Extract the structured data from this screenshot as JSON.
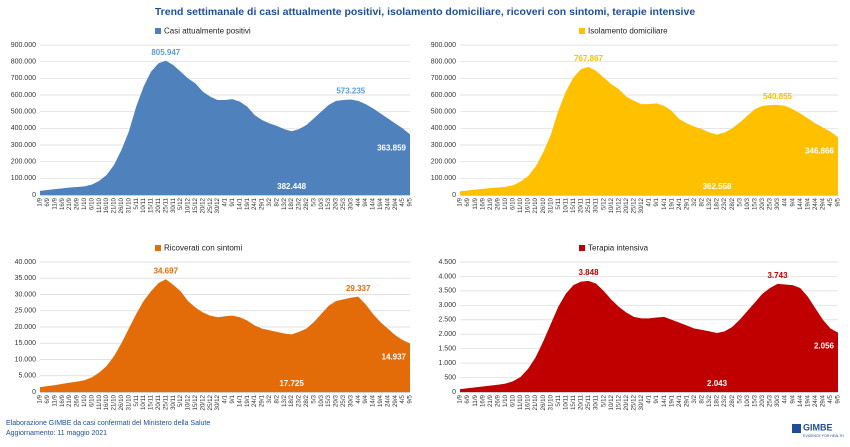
{
  "title": "Trend settimanale di casi attualmente positivi, isolamento domiciliare, ricoveri con sintomi, terapie intensive",
  "footer": [
    "Elaborazione GIMBE da casi confermati del Ministero della Salute",
    "Aggiornamento: 11 maggio 2021"
  ],
  "logo": {
    "name": "GIMBE",
    "tagline": "EVIDENCE FOR HEALTH"
  },
  "chart_data": [
    {
      "type": "area",
      "series": [
        {
          "name": "Casi attualmente positivi",
          "color": "#4f81bd",
          "label_color": "#5b9bd5",
          "values": [
            25000,
            30000,
            35000,
            40000,
            45000,
            48000,
            52000,
            62000,
            85000,
            120000,
            180000,
            270000,
            380000,
            530000,
            650000,
            740000,
            790000,
            805947,
            780000,
            740000,
            700000,
            670000,
            620000,
            590000,
            570000,
            570000,
            575000,
            560000,
            530000,
            480000,
            450000,
            430000,
            415000,
            395000,
            382448,
            395000,
            420000,
            460000,
            500000,
            540000,
            565000,
            570000,
            573235,
            565000,
            545000,
            520000,
            490000,
            460000,
            430000,
            400000,
            363859
          ],
          "value_labels": [
            null,
            null,
            null,
            null,
            null,
            null,
            null,
            null,
            null,
            null,
            null,
            null,
            null,
            null,
            null,
            null,
            null,
            "805.947",
            null,
            null,
            null,
            null,
            null,
            null,
            null,
            null,
            null,
            null,
            null,
            null,
            null,
            null,
            null,
            null,
            "382.448",
            null,
            null,
            null,
            null,
            null,
            null,
            null,
            "573.235",
            null,
            null,
            null,
            null,
            null,
            null,
            null,
            "363.859"
          ]
        }
      ],
      "categories": [
        "1/9",
        "6/9",
        "11/9",
        "16/9",
        "21/9",
        "26/9",
        "1/10",
        "6/10",
        "11/10",
        "16/10",
        "21/10",
        "26/10",
        "31/10",
        "5/11",
        "10/11",
        "15/11",
        "20/11",
        "25/11",
        "30/11",
        "5/12",
        "10/12",
        "15/12",
        "20/12",
        "25/12",
        "30/12",
        "4/1",
        "9/1",
        "14/1",
        "19/1",
        "24/1",
        "29/1",
        "3/2",
        "8/2",
        "13/2",
        "18/2",
        "23/2",
        "28/2",
        "5/3",
        "10/3",
        "15/3",
        "20/3",
        "25/3",
        "30/3",
        "4/4",
        "9/4",
        "14/4",
        "19/4",
        "24/4",
        "29/4",
        "4/5",
        "9/5"
      ],
      "ylim": [
        0,
        900000
      ],
      "yticks": [
        0,
        {
          "value": 100000,
          "label": "100.000"
        },
        {
          "value": 200000,
          "label": "200.000"
        },
        {
          "value": 300000,
          "label": "300.000"
        },
        {
          "value": 400000,
          "label": "400.000"
        },
        {
          "value": 500000,
          "label": "500.000"
        },
        {
          "value": 600000,
          "label": "600.000"
        },
        {
          "value": 700000,
          "label": "700.000"
        },
        {
          "value": 800000,
          "label": "800.000"
        },
        {
          "value": 900000,
          "label": "900.000"
        }
      ],
      "grid": true,
      "legend": "top"
    },
    {
      "type": "area",
      "series": [
        {
          "name": "Isolamento domiciliare",
          "color": "#ffc000",
          "label_color": "#ffc000",
          "values": [
            22000,
            27000,
            32000,
            37000,
            42000,
            45000,
            49000,
            58000,
            80000,
            113000,
            170000,
            255000,
            360000,
            505000,
            620000,
            705000,
            755000,
            767867,
            745000,
            705000,
            665000,
            635000,
            590000,
            565000,
            545000,
            545000,
            550000,
            535000,
            505000,
            455000,
            430000,
            410000,
            395000,
            375000,
            362558,
            375000,
            400000,
            435000,
            475000,
            515000,
            535000,
            540000,
            540855,
            535000,
            515000,
            490000,
            460000,
            430000,
            405000,
            380000,
            346866
          ],
          "value_labels": [
            null,
            null,
            null,
            null,
            null,
            null,
            null,
            null,
            null,
            null,
            null,
            null,
            null,
            null,
            null,
            null,
            null,
            "767.867",
            null,
            null,
            null,
            null,
            null,
            null,
            null,
            null,
            null,
            null,
            null,
            null,
            null,
            null,
            null,
            null,
            "362.558",
            null,
            null,
            null,
            null,
            null,
            null,
            null,
            "540.855",
            null,
            null,
            null,
            null,
            null,
            null,
            null,
            "346.866"
          ]
        }
      ],
      "categories": [
        "1/9",
        "6/9",
        "11/9",
        "16/9",
        "21/9",
        "26/9",
        "1/10",
        "6/10",
        "11/10",
        "16/10",
        "21/10",
        "26/10",
        "31/10",
        "5/11",
        "10/11",
        "15/11",
        "20/11",
        "25/11",
        "30/11",
        "5/12",
        "10/12",
        "15/12",
        "20/12",
        "25/12",
        "30/12",
        "4/1",
        "9/1",
        "14/1",
        "19/1",
        "24/1",
        "29/1",
        "3/2",
        "8/2",
        "13/2",
        "18/2",
        "23/2",
        "28/2",
        "5/3",
        "10/3",
        "15/3",
        "20/3",
        "25/3",
        "30/3",
        "4/4",
        "9/4",
        "14/4",
        "19/4",
        "24/4",
        "29/4",
        "4/5",
        "9/5"
      ],
      "ylim": [
        0,
        900000
      ],
      "yticks": [
        0,
        {
          "value": 100000,
          "label": "100.000"
        },
        {
          "value": 200000,
          "label": "200.000"
        },
        {
          "value": 300000,
          "label": "300.000"
        },
        {
          "value": 400000,
          "label": "400.000"
        },
        {
          "value": 500000,
          "label": "500.000"
        },
        {
          "value": 600000,
          "label": "600.000"
        },
        {
          "value": 700000,
          "label": "700.000"
        },
        {
          "value": 800000,
          "label": "800.000"
        },
        {
          "value": 900000,
          "label": "900.000"
        }
      ],
      "grid": true,
      "legend": "top"
    },
    {
      "type": "area",
      "series": [
        {
          "name": "Ricoverati con sintomi",
          "color": "#e36c09",
          "label_color": "#e36c09",
          "values": [
            1500,
            1800,
            2100,
            2500,
            2900,
            3200,
            3600,
            4500,
            6000,
            8000,
            11000,
            15000,
            19500,
            24000,
            28000,
            31000,
            33500,
            34697,
            33000,
            31000,
            28000,
            26000,
            24500,
            23500,
            23000,
            23300,
            23500,
            23000,
            22000,
            20500,
            19500,
            19000,
            18500,
            18000,
            17725,
            18500,
            19500,
            21500,
            24000,
            26500,
            28000,
            28500,
            29000,
            29337,
            27000,
            24000,
            21500,
            19500,
            17500,
            16000,
            14937
          ],
          "value_labels": [
            null,
            null,
            null,
            null,
            null,
            null,
            null,
            null,
            null,
            null,
            null,
            null,
            null,
            null,
            null,
            null,
            null,
            "34.697",
            null,
            null,
            null,
            null,
            null,
            null,
            null,
            null,
            null,
            null,
            null,
            null,
            null,
            null,
            null,
            null,
            "17.725",
            null,
            null,
            null,
            null,
            null,
            null,
            null,
            null,
            "29.337",
            null,
            null,
            null,
            null,
            null,
            null,
            "14.937"
          ]
        }
      ],
      "categories": [
        "1/9",
        "6/9",
        "11/9",
        "16/9",
        "21/9",
        "26/9",
        "1/10",
        "6/10",
        "11/10",
        "16/10",
        "21/10",
        "26/10",
        "31/10",
        "5/11",
        "10/11",
        "15/11",
        "20/11",
        "25/11",
        "30/11",
        "5/12",
        "10/12",
        "15/12",
        "20/12",
        "25/12",
        "30/12",
        "4/1",
        "9/1",
        "14/1",
        "19/1",
        "24/1",
        "29/1",
        "3/2",
        "8/2",
        "13/2",
        "18/2",
        "23/2",
        "28/2",
        "5/3",
        "10/3",
        "15/3",
        "20/3",
        "25/3",
        "30/3",
        "4/4",
        "9/4",
        "14/4",
        "19/4",
        "24/4",
        "29/4",
        "4/5",
        "9/5"
      ],
      "ylim": [
        0,
        40000
      ],
      "yticks": [
        0,
        {
          "value": 5000,
          "label": "5.000"
        },
        {
          "value": 10000,
          "label": "10.000"
        },
        {
          "value": 15000,
          "label": "15.000"
        },
        {
          "value": 20000,
          "label": "20.000"
        },
        {
          "value": 25000,
          "label": "25.000"
        },
        {
          "value": 30000,
          "label": "30.000"
        },
        {
          "value": 35000,
          "label": "35.000"
        },
        {
          "value": 40000,
          "label": "40.000"
        }
      ],
      "grid": true,
      "legend": "top"
    },
    {
      "type": "area",
      "series": [
        {
          "name": "Terapia intensiva",
          "color": "#c00000",
          "label_color": "#c00000",
          "values": [
            100,
            130,
            160,
            190,
            220,
            250,
            290,
            370,
            520,
            800,
            1200,
            1750,
            2350,
            2950,
            3400,
            3700,
            3820,
            3848,
            3750,
            3500,
            3200,
            2950,
            2750,
            2600,
            2550,
            2550,
            2580,
            2600,
            2500,
            2400,
            2300,
            2200,
            2150,
            2100,
            2043,
            2100,
            2250,
            2500,
            2800,
            3100,
            3400,
            3600,
            3743,
            3720,
            3700,
            3600,
            3300,
            2900,
            2500,
            2200,
            2056
          ],
          "value_labels": [
            null,
            null,
            null,
            null,
            null,
            null,
            null,
            null,
            null,
            null,
            null,
            null,
            null,
            null,
            null,
            null,
            null,
            "3.848",
            null,
            null,
            null,
            null,
            null,
            null,
            null,
            null,
            null,
            null,
            null,
            null,
            null,
            null,
            null,
            null,
            "2.043",
            null,
            null,
            null,
            null,
            null,
            null,
            null,
            "3.743",
            null,
            null,
            null,
            null,
            null,
            null,
            null,
            "2.056"
          ]
        }
      ],
      "categories": [
        "1/9",
        "6/9",
        "11/9",
        "16/9",
        "21/9",
        "26/9",
        "1/10",
        "6/10",
        "11/10",
        "16/10",
        "21/10",
        "26/10",
        "31/10",
        "5/11",
        "10/11",
        "15/11",
        "20/11",
        "25/11",
        "30/11",
        "5/12",
        "10/12",
        "15/12",
        "20/12",
        "25/12",
        "30/12",
        "4/1",
        "9/1",
        "14/1",
        "19/1",
        "24/1",
        "29/1",
        "3/2",
        "8/2",
        "13/2",
        "18/2",
        "23/2",
        "28/2",
        "5/3",
        "10/3",
        "15/3",
        "20/3",
        "25/3",
        "30/3",
        "4/4",
        "9/4",
        "14/4",
        "19/4",
        "24/4",
        "29/4",
        "4/5",
        "9/5"
      ],
      "ylim": [
        0,
        4500
      ],
      "yticks": [
        0,
        500,
        {
          "value": 1000,
          "label": "1.000"
        },
        {
          "value": 1500,
          "label": "1.500"
        },
        {
          "value": 2000,
          "label": "2.000"
        },
        {
          "value": 2500,
          "label": "2.500"
        },
        {
          "value": 3000,
          "label": "3.000"
        },
        {
          "value": 3500,
          "label": "3.500"
        },
        {
          "value": 4000,
          "label": "4.000"
        },
        {
          "value": 4500,
          "label": "4.500"
        }
      ],
      "grid": true,
      "legend": "top"
    }
  ]
}
